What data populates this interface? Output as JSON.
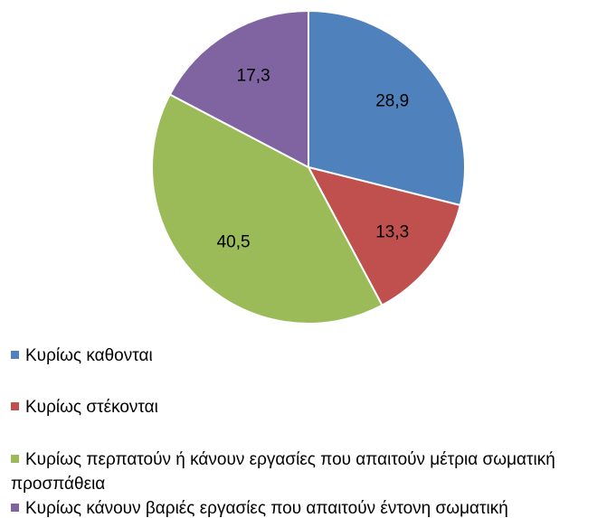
{
  "chart_data": {
    "type": "pie",
    "categories": [
      "Κυρίως καθονται",
      "Κυρίως στέκονται",
      "Κυρίως περπατούν ή κάνουν εργασίες που απαιτούν μέτρια σωματική προσπάθεια",
      "Κυρίως κάνουν βαριές εργασίες που απαιτούν έντονη σωματική"
    ],
    "values": [
      28.9,
      13.3,
      40.5,
      17.3
    ],
    "value_labels": [
      "28,9",
      "13,3",
      "40,5",
      "17,3"
    ],
    "colors": [
      "#4f81bd",
      "#c0504d",
      "#9bbb59",
      "#8064a2"
    ],
    "legend": "bottom"
  }
}
